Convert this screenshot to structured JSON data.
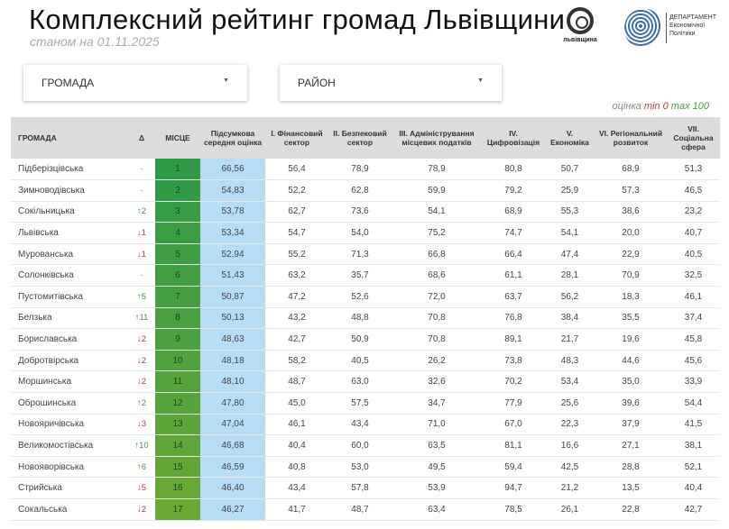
{
  "header": {
    "title": "Комплексний рейтинг громад Львівщини",
    "subtitle": "станом на 01.11.2025",
    "logo1_text": "львівщина",
    "logo2_text": "ДЕПАРТАМЕНТ Економічної Політики"
  },
  "filters": [
    {
      "label": "ГРОМАДА"
    },
    {
      "label": "РАЙОН"
    }
  ],
  "scale": {
    "prefix": "оцінка",
    "min": "min 0",
    "max": "max 100"
  },
  "colors": {
    "place_top": "#2e9a48",
    "place_bottom": "#6aa835",
    "score_bg": "#b9dcf5",
    "header_bg": "#dcdcdc",
    "up": "#3a9a3a",
    "down": "#c0392b"
  },
  "table": {
    "columns": [
      "ГРОМАДА",
      "Δ",
      "МІСЦЕ",
      "Підсумкова середня оцінка",
      "I. Фінансовий сектор",
      "II. Безпековий сектор",
      "III. Адміністрування місцевих податків",
      "IV. Цифровізація",
      "V. Економіка",
      "VI. Регіональний розвиток",
      "VII. Соціальна сфера"
    ],
    "rows": [
      [
        "Підберізцівська",
        "-",
        "1",
        "66,56",
        "56,4",
        "78,9",
        "78,9",
        "80,8",
        "50,7",
        "68,9",
        "51,3"
      ],
      [
        "Зимноводівська",
        "-",
        "2",
        "54,83",
        "52,2",
        "62,8",
        "59,9",
        "79,2",
        "25,9",
        "57,3",
        "46,5"
      ],
      [
        "Сокільницька",
        "↑2",
        "3",
        "53,78",
        "62,7",
        "73,6",
        "54,1",
        "68,9",
        "55,3",
        "38,6",
        "23,2"
      ],
      [
        "Львівська",
        "↓1",
        "4",
        "53,34",
        "54,7",
        "54,0",
        "75,2",
        "74,7",
        "54,1",
        "20,0",
        "40,7"
      ],
      [
        "Мурованська",
        "↓1",
        "5",
        "52,94",
        "55,2",
        "71,3",
        "66,8",
        "66,4",
        "47,4",
        "22,9",
        "40,5"
      ],
      [
        "Солонківська",
        "-",
        "6",
        "51,43",
        "63,2",
        "35,7",
        "68,6",
        "61,1",
        "28,1",
        "70,9",
        "32,5"
      ],
      [
        "Пустомитівська",
        "↑5",
        "7",
        "50,87",
        "47,2",
        "52,6",
        "72,0",
        "63,7",
        "56,2",
        "18,3",
        "46,1"
      ],
      [
        "Белзька",
        "↑11",
        "8",
        "50,13",
        "43,2",
        "48,8",
        "70,8",
        "76,8",
        "38,4",
        "35,5",
        "37,4"
      ],
      [
        "Бориславська",
        "↓2",
        "9",
        "48,63",
        "42,7",
        "50,9",
        "70,8",
        "89,1",
        "21,7",
        "19,6",
        "45,8"
      ],
      [
        "Добротвірська",
        "↓2",
        "10",
        "48,18",
        "58,2",
        "40,5",
        "26,2",
        "73,8",
        "48,3",
        "44,6",
        "45,6"
      ],
      [
        "Моршинська",
        "↓2",
        "11",
        "48,10",
        "48,7",
        "63,0",
        "32,6",
        "70,2",
        "53,4",
        "35,0",
        "33,9"
      ],
      [
        "Оброшинська",
        "↑2",
        "12",
        "47,80",
        "45,0",
        "57,5",
        "34,7",
        "77,9",
        "25,6",
        "39,6",
        "54,4"
      ],
      [
        "Новояричівська",
        "↓3",
        "13",
        "47,04",
        "46,1",
        "43,4",
        "71,0",
        "67,0",
        "22,3",
        "37,9",
        "41,5"
      ],
      [
        "Великомостівська",
        "↑10",
        "14",
        "46,68",
        "40,4",
        "60,0",
        "63,5",
        "81,1",
        "16,6",
        "27,1",
        "38,1"
      ],
      [
        "Новояворівська",
        "↑6",
        "15",
        "46,59",
        "40,8",
        "53,0",
        "49,5",
        "59,4",
        "42,5",
        "28,8",
        "52,1"
      ],
      [
        "Стрийська",
        "↓5",
        "16",
        "46,40",
        "43,4",
        "57,8",
        "53,9",
        "94,7",
        "21,2",
        "13,5",
        "40,4"
      ],
      [
        "Сокальська",
        "↓2",
        "17",
        "46,27",
        "41,7",
        "48,7",
        "63,4",
        "78,5",
        "26,1",
        "22,8",
        "42,7"
      ]
    ]
  }
}
